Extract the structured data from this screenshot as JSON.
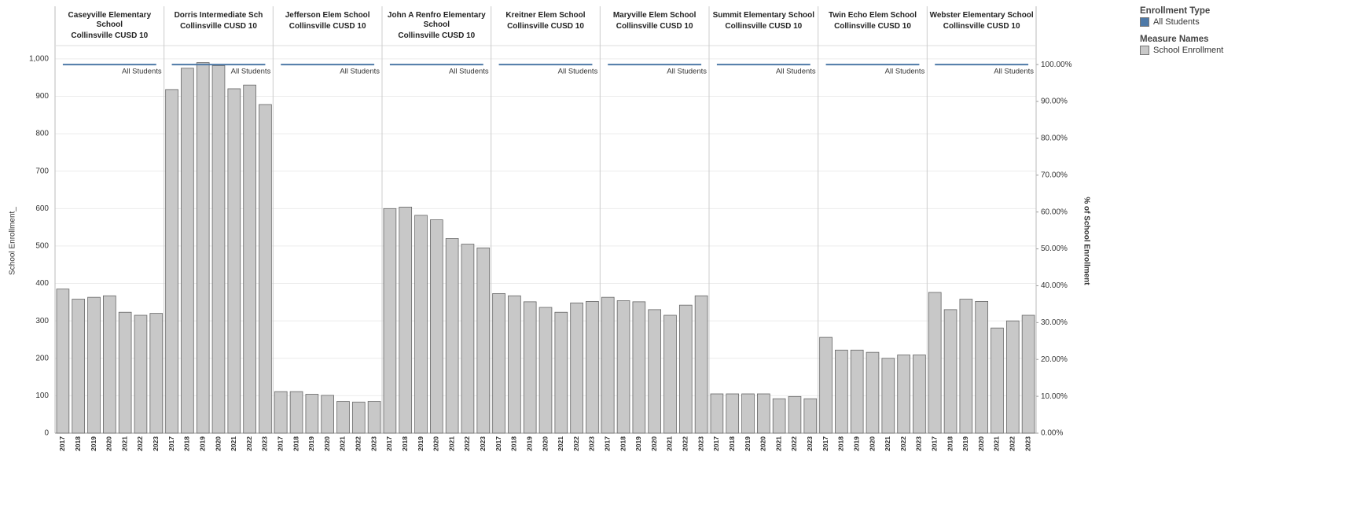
{
  "chart_data": {
    "type": "bar",
    "y_label": "School Enrollment_",
    "y2_label": "% of School Enrollment",
    "ylim": [
      0,
      1027
    ],
    "yticks": [
      0,
      100,
      200,
      300,
      400,
      500,
      600,
      700,
      800,
      900,
      {
        "value": 1000,
        "label": "1,000"
      }
    ],
    "y2lim": [
      0,
      104.3
    ],
    "y2ticks": [
      {
        "value": 0,
        "label": "0.00%"
      },
      {
        "value": 10,
        "label": "10.00%"
      },
      {
        "value": 20,
        "label": "20.00%"
      },
      {
        "value": 30,
        "label": "30.00%"
      },
      {
        "value": 40,
        "label": "40.00%"
      },
      {
        "value": 50,
        "label": "50.00%"
      },
      {
        "value": 60,
        "label": "60.00%"
      },
      {
        "value": 70,
        "label": "70.00%"
      },
      {
        "value": 80,
        "label": "80.00%"
      },
      {
        "value": 90,
        "label": "90.00%"
      },
      {
        "value": 100,
        "label": "100.00%"
      }
    ],
    "grid": true,
    "categories": [
      "2017",
      "2018",
      "2019",
      "2020",
      "2021",
      "2022",
      "2023"
    ],
    "series": [
      {
        "name": "School Enrollment",
        "legend_title": "Measure Names",
        "color": "#c8c8c8"
      },
      {
        "name": "All Students",
        "legend_title": "Enrollment Type",
        "color": "#4e79a7",
        "axis": "y2"
      }
    ],
    "panels": [
      {
        "title": "Caseyville Elementary School",
        "district": "Collinsville CUSD 10",
        "values": [
          385,
          358,
          363,
          367,
          323,
          315,
          320
        ],
        "line_values": [
          100,
          100,
          100,
          100,
          100,
          100,
          100
        ]
      },
      {
        "title": "Dorris Intermediate Sch",
        "district": "Collinsville CUSD 10",
        "values": [
          918,
          975,
          990,
          982,
          920,
          930,
          878
        ],
        "line_values": [
          100,
          100,
          100,
          100,
          100,
          100,
          100
        ]
      },
      {
        "title": "Jefferson Elem School",
        "district": "Collinsville CUSD 10",
        "values": [
          111,
          111,
          104,
          101,
          85,
          83,
          85
        ],
        "line_values": [
          100,
          100,
          100,
          100,
          100,
          100,
          100
        ]
      },
      {
        "title": "John A Renfro Elementary School",
        "district": "Collinsville CUSD 10",
        "values": [
          600,
          604,
          582,
          570,
          520,
          505,
          495
        ],
        "line_values": [
          100,
          100,
          100,
          100,
          100,
          100,
          100
        ]
      },
      {
        "title": "Kreitner Elem School",
        "district": "Collinsville CUSD 10",
        "values": [
          373,
          367,
          351,
          336,
          323,
          348,
          352
        ],
        "line_values": [
          100,
          100,
          100,
          100,
          100,
          100,
          100
        ]
      },
      {
        "title": "Maryville Elem School",
        "district": "Collinsville CUSD 10",
        "values": [
          363,
          354,
          351,
          330,
          315,
          342,
          367
        ],
        "line_values": [
          100,
          100,
          100,
          100,
          100,
          100,
          100
        ]
      },
      {
        "title": "Summit Elementary School",
        "district": "Collinsville CUSD 10",
        "values": [
          105,
          105,
          105,
          105,
          92,
          98,
          92
        ],
        "line_values": [
          100,
          100,
          100,
          100,
          100,
          100,
          100
        ]
      },
      {
        "title": "Twin Echo Elem School",
        "district": "Collinsville CUSD 10",
        "values": [
          256,
          222,
          222,
          216,
          200,
          209,
          209
        ],
        "line_values": [
          100,
          100,
          100,
          100,
          100,
          100,
          100
        ]
      },
      {
        "title": "Webster Elementary School",
        "district": "Collinsville CUSD 10",
        "values": [
          376,
          330,
          358,
          352,
          281,
          300,
          315
        ],
        "line_values": [
          100,
          100,
          100,
          100,
          100,
          100,
          100
        ]
      }
    ]
  }
}
